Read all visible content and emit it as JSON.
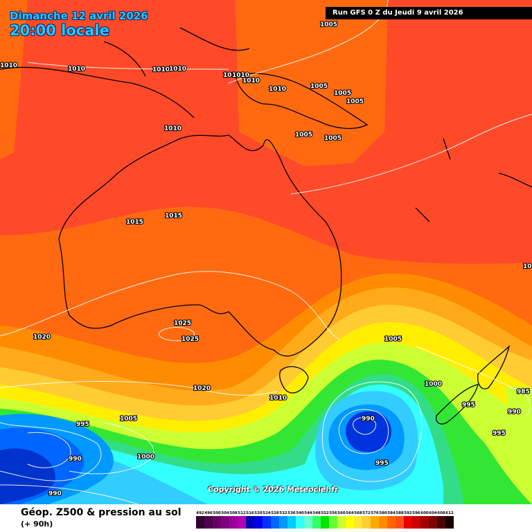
{
  "header": {
    "date_line": "Dimanche 12 avril 2026",
    "time_line": "20:00 locale",
    "run_info": "Run GFS 0 Z du Jeudi 9 avril 2026"
  },
  "footer": {
    "field_title": "Géop. Z500 & pression au sol",
    "lead_time": "(+ 90h)",
    "copyright": "Copyright © 2026 Meteociel.fr",
    "scale_values": [
      "492",
      "496",
      "500",
      "504",
      "508",
      "512",
      "516",
      "520",
      "524",
      "528",
      "532",
      "536",
      "540",
      "544",
      "548",
      "552",
      "556",
      "560",
      "564",
      "568",
      "572",
      "576",
      "580",
      "584",
      "588",
      "592",
      "596",
      "600",
      "604",
      "608",
      "612"
    ],
    "scale_colors": [
      "#330033",
      "#4d004d",
      "#660066",
      "#800080",
      "#990099",
      "#b300b3",
      "#0000b3",
      "#0000e6",
      "#0033ff",
      "#0066ff",
      "#0099ff",
      "#00ccff",
      "#33ffff",
      "#66ffcc",
      "#33ff66",
      "#00e600",
      "#66ff33",
      "#ccff33",
      "#ffff00",
      "#ffe633",
      "#ffcc33",
      "#ffaa00",
      "#ff8c00",
      "#ff6600",
      "#ff4d1a",
      "#e60000",
      "#cc0000",
      "#a30000",
      "#800000",
      "#4d0000",
      "#1a0000"
    ]
  },
  "isobar_labels": [
    {
      "text": "1005"
    },
    {
      "text": "1010"
    },
    {
      "text": "1010"
    },
    {
      "text": "1010"
    },
    {
      "text": "1010"
    },
    {
      "text": "1010"
    },
    {
      "text": "1010"
    },
    {
      "text": "1010"
    },
    {
      "text": "1005"
    },
    {
      "text": "1005"
    },
    {
      "text": "1005"
    },
    {
      "text": "1010"
    },
    {
      "text": "1005"
    },
    {
      "text": "1005"
    },
    {
      "text": "1010"
    },
    {
      "text": "1015"
    },
    {
      "text": "1015"
    },
    {
      "text": "1025"
    },
    {
      "text": "1025"
    },
    {
      "text": "1020"
    },
    {
      "text": "1005"
    },
    {
      "text": "1020"
    },
    {
      "text": "1010"
    },
    {
      "text": "1000"
    },
    {
      "text": "985"
    },
    {
      "text": "995"
    },
    {
      "text": "990"
    },
    {
      "text": "990"
    },
    {
      "text": "995"
    },
    {
      "text": "995"
    },
    {
      "text": "1005"
    },
    {
      "text": "995"
    },
    {
      "text": "990"
    },
    {
      "text": "1000"
    },
    {
      "text": "990"
    },
    {
      "text": "10"
    }
  ]
}
